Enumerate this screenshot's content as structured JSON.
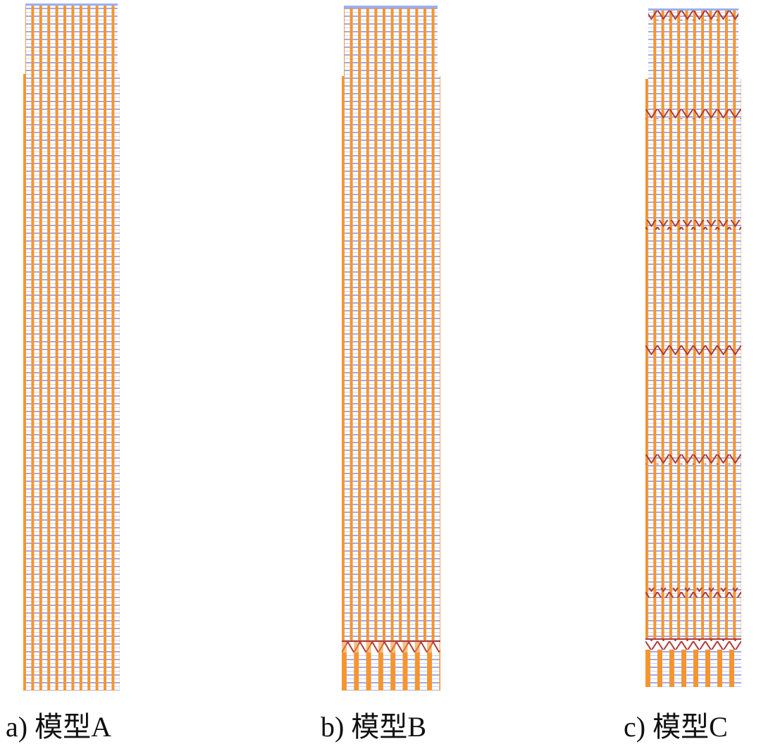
{
  "panels": [
    {
      "caption": "a) 模型A"
    },
    {
      "caption": "b) 模型B"
    },
    {
      "caption": "c) 模型C"
    }
  ]
}
